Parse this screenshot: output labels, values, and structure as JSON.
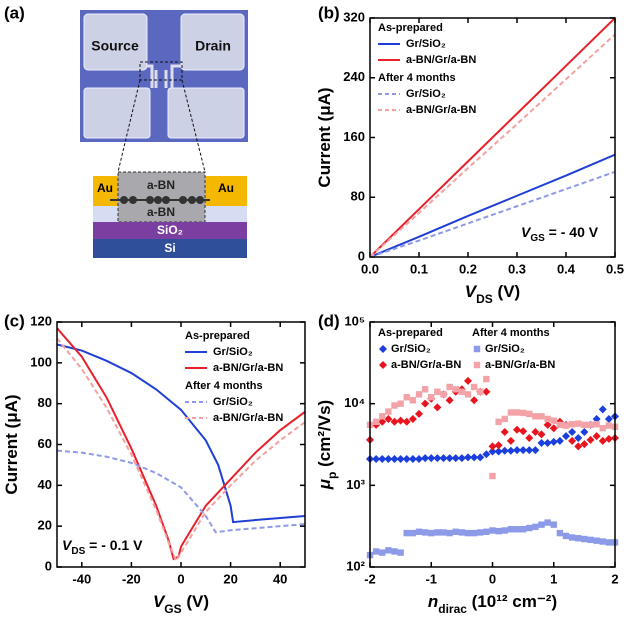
{
  "panel_a": {
    "panel_label": "(a)",
    "pads": [
      "Source",
      "Drain"
    ],
    "layers": [
      "Au",
      "a-BN",
      "a-BN",
      "Au",
      "SiO₂",
      "Si"
    ]
  },
  "chart_data": [
    {
      "type": "line",
      "panel_label": "(b)",
      "xlabel": [
        "V",
        "DS",
        " (V)"
      ],
      "ylabel": [
        "Current (μA)"
      ],
      "annotation": [
        "V",
        "GS",
        " = - 40 V"
      ],
      "xlim": [
        0,
        0.5
      ],
      "xticks": [
        {
          "value": 0,
          "label": "0.0"
        },
        0.1,
        0.2,
        0.3,
        0.4,
        0.5
      ],
      "ylim": [
        0,
        320
      ],
      "yticks": [
        0,
        80,
        160,
        240,
        320
      ],
      "legend_titles": [
        "As-prepared",
        "After 4 months"
      ],
      "series": [
        {
          "name": "Gr/SiO₂",
          "color": "#1f3fd6",
          "dash": false,
          "x": [
            0,
            0.1,
            0.2,
            0.3,
            0.4,
            0.5
          ],
          "values": [
            0,
            27,
            55,
            82,
            109,
            137
          ]
        },
        {
          "name": "a-BN/Gr/a-BN",
          "color": "#e8202a",
          "dash": false,
          "x": [
            0,
            0.1,
            0.2,
            0.3,
            0.4,
            0.5
          ],
          "values": [
            0,
            64,
            128,
            192,
            256,
            320
          ]
        },
        {
          "name": "Gr/SiO₂",
          "color": "#8f99e8",
          "dash": true,
          "x": [
            0,
            0.1,
            0.2,
            0.3,
            0.4,
            0.5
          ],
          "values": [
            0,
            22,
            45,
            68,
            91,
            114
          ]
        },
        {
          "name": "a-BN/Gr/a-BN",
          "color": "#f4a0a0",
          "dash": true,
          "x": [
            0,
            0.1,
            0.2,
            0.3,
            0.4,
            0.5
          ],
          "values": [
            0,
            59,
            119,
            178,
            238,
            298
          ]
        }
      ]
    },
    {
      "type": "line",
      "panel_label": "(c)",
      "xlabel": [
        "V",
        "GS",
        " (V)"
      ],
      "ylabel": [
        "Current (μA)"
      ],
      "annotation": [
        "V",
        "DS",
        " = - 0.1 V"
      ],
      "xlim": [
        -50,
        50
      ],
      "xticks": [
        -40,
        -20,
        0,
        20,
        40
      ],
      "ylim": [
        0,
        120
      ],
      "yticks": [
        0,
        20,
        40,
        60,
        80,
        100,
        120
      ],
      "legend_titles": [
        "As-prepared",
        "After 4 months"
      ],
      "series": [
        {
          "name": "Gr/SiO₂",
          "color": "#1f3fd6",
          "dash": false,
          "x": [
            -50,
            -40,
            -30,
            -20,
            -10,
            0,
            10,
            15,
            20,
            21,
            30,
            40,
            50
          ],
          "values": [
            109,
            106,
            101,
            95,
            87,
            77,
            62,
            50,
            30,
            22,
            23,
            24,
            25
          ]
        },
        {
          "name": "a-BN/Gr/a-BN",
          "color": "#e8202a",
          "dash": false,
          "x": [
            -50,
            -40,
            -30,
            -20,
            -10,
            -5,
            -3,
            -1,
            0,
            5,
            10,
            20,
            30,
            40,
            50
          ],
          "values": [
            117,
            103,
            83,
            58,
            30,
            13,
            4,
            5,
            10,
            20,
            30,
            43,
            56,
            67,
            76
          ]
        },
        {
          "name": "Gr/SiO₂",
          "color": "#8f99e8",
          "dash": true,
          "x": [
            -50,
            -40,
            -30,
            -20,
            -10,
            0,
            10,
            14,
            20,
            30,
            40,
            50
          ],
          "values": [
            57,
            56,
            54,
            51,
            46,
            39,
            25,
            17,
            18,
            19,
            20,
            21
          ]
        },
        {
          "name": "a-BN/Gr/a-BN",
          "color": "#f4a0a0",
          "dash": true,
          "x": [
            -50,
            -40,
            -30,
            -20,
            -10,
            -5,
            -2,
            0,
            5,
            10,
            20,
            30,
            40,
            50
          ],
          "values": [
            112,
            97,
            78,
            55,
            28,
            12,
            3,
            7,
            17,
            27,
            40,
            52,
            62,
            71
          ]
        }
      ]
    },
    {
      "type": "scatter",
      "panel_label": "(d)",
      "xlabel": [
        "n",
        "dirac",
        " (10¹² cm⁻²)"
      ],
      "ylabel": [
        "μ",
        "p",
        " (cm²/Vs)"
      ],
      "log_y": true,
      "xlim": [
        -2,
        2
      ],
      "xticks": [
        -2,
        -1,
        0,
        1,
        2
      ],
      "ylim": [
        100,
        100000
      ],
      "yticks": [
        {
          "value": 100,
          "label": "10²"
        },
        {
          "value": 1000,
          "label": "10³"
        },
        {
          "value": 10000,
          "label": "10⁴"
        },
        {
          "value": 100000,
          "label": "10⁵"
        }
      ],
      "legend_titles": [
        "As-prepared",
        "After 4 months"
      ],
      "x": [
        -2,
        -1.9,
        -1.8,
        -1.7,
        -1.6,
        -1.5,
        -1.4,
        -1.3,
        -1.2,
        -1.1,
        -1,
        -0.9,
        -0.8,
        -0.7,
        -0.6,
        -0.5,
        -0.4,
        -0.3,
        -0.2,
        -0.1,
        0,
        0.1,
        0.2,
        0.3,
        0.4,
        0.5,
        0.6,
        0.7,
        0.8,
        0.9,
        1,
        1.1,
        1.2,
        1.3,
        1.4,
        1.5,
        1.6,
        1.7,
        1.8,
        1.9,
        2
      ],
      "series": [
        {
          "name": "Gr/SiO₂",
          "color": "#1a3fdc",
          "marker": "diamond",
          "values": [
            2100,
            2100,
            2100,
            2100,
            2100,
            2100,
            2100,
            2100,
            2100,
            2150,
            2150,
            2150,
            2150,
            2150,
            2150,
            2150,
            2200,
            2200,
            2200,
            2400,
            2600,
            2600,
            2650,
            2650,
            2700,
            2700,
            2700,
            2700,
            3300,
            3300,
            3400,
            3500,
            4000,
            4500,
            3800,
            4500,
            5500,
            6500,
            8500,
            6500,
            7000
          ]
        },
        {
          "name": "a-BN/Gr/a-BN",
          "color": "#e8141e",
          "marker": "diamond",
          "values": [
            3600,
            5500,
            6000,
            6500,
            6000,
            6200,
            6000,
            6500,
            7500,
            10000,
            11500,
            9000,
            13000,
            11000,
            14000,
            15000,
            19000,
            11000,
            14000,
            14000,
            3000,
            3100,
            4500,
            3500,
            4800,
            4600,
            3800,
            4500,
            4200,
            5500,
            5000,
            6000,
            5500,
            3500,
            3000,
            3200,
            3600,
            4000,
            3500,
            3700,
            3800
          ]
        },
        {
          "name": "Gr/SiO₂",
          "color": "#8c9ae8",
          "marker": "square",
          "values": [
            140,
            155,
            150,
            160,
            155,
            150,
            260,
            260,
            270,
            265,
            260,
            265,
            265,
            260,
            270,
            265,
            260,
            260,
            265,
            270,
            280,
            275,
            280,
            290,
            290,
            290,
            300,
            310,
            330,
            350,
            330,
            260,
            240,
            230,
            225,
            220,
            215,
            210,
            205,
            200,
            200
          ]
        },
        {
          "name": "a-BN/Gr/a-BN",
          "color": "#f3a3a8",
          "marker": "square",
          "values": [
            5500,
            6000,
            7000,
            8000,
            9500,
            10000,
            12000,
            11000,
            13000,
            15000,
            12000,
            14000,
            13000,
            16000,
            15000,
            14000,
            13000,
            16000,
            14000,
            20000,
            1300,
            6000,
            6500,
            7800,
            7800,
            7700,
            7500,
            7000,
            7000,
            6500,
            6200,
            5500,
            5400,
            5600,
            5700,
            5500,
            5500,
            5600,
            5000,
            5400,
            5200
          ]
        }
      ]
    }
  ]
}
